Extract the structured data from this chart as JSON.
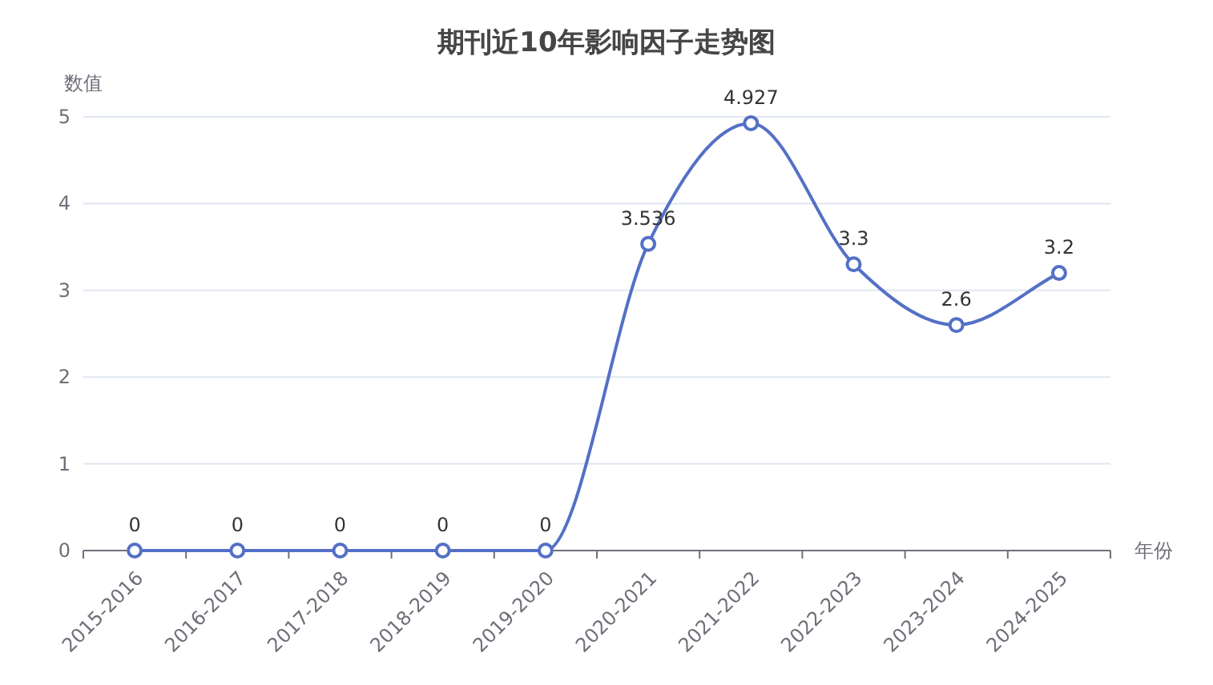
{
  "chart_data": {
    "type": "line",
    "title": "期刊近10年影响因子走势图",
    "xlabel": "年份",
    "ylabel": "数值",
    "categories": [
      "2015-2016",
      "2016-2017",
      "2017-2018",
      "2018-2019",
      "2019-2020",
      "2020-2021",
      "2021-2022",
      "2022-2023",
      "2023-2024",
      "2024-2025"
    ],
    "values": [
      0,
      0,
      0,
      0,
      0,
      3.536,
      4.927,
      3.3,
      2.6,
      3.2
    ],
    "color": "#5470c6",
    "ylim": [
      0,
      5
    ],
    "yticks": [
      0,
      1,
      2,
      3,
      4,
      5
    ],
    "grid": "y",
    "marker": "circle",
    "line_style": "solid",
    "data_labels": true
  }
}
